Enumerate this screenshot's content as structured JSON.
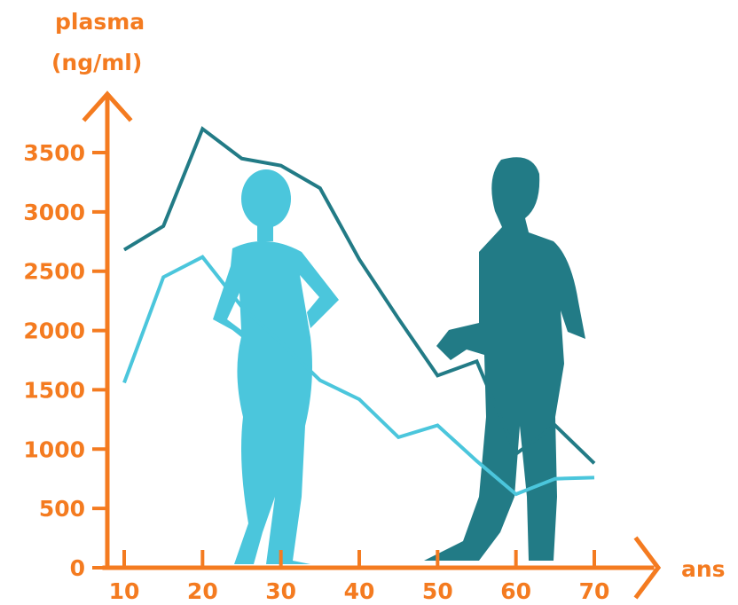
{
  "chart_data": {
    "type": "line",
    "ylabel_line1": "plasma",
    "ylabel_line2": "(ng/ml)",
    "xlabel": "ans",
    "xlim": [
      10,
      70
    ],
    "ylim": [
      0,
      3500
    ],
    "x_ticks": [
      10,
      20,
      30,
      40,
      50,
      60,
      70
    ],
    "y_ticks": [
      0,
      500,
      1000,
      1500,
      2000,
      2500,
      3000,
      3500
    ],
    "grid": false,
    "series": [
      {
        "color": "#227b86",
        "points": [
          [
            10,
            2680
          ],
          [
            15,
            2880
          ],
          [
            20,
            3700
          ],
          [
            25,
            3450
          ],
          [
            30,
            3390
          ],
          [
            35,
            3200
          ],
          [
            40,
            2600
          ],
          [
            45,
            2100
          ],
          [
            50,
            1620
          ],
          [
            55,
            1740
          ],
          [
            60,
            960
          ],
          [
            65,
            1200
          ],
          [
            70,
            880
          ]
        ]
      },
      {
        "color": "#4bc6dc",
        "points": [
          [
            10,
            1560
          ],
          [
            15,
            2450
          ],
          [
            20,
            2620
          ],
          [
            25,
            2200
          ],
          [
            30,
            1900
          ],
          [
            35,
            1580
          ],
          [
            40,
            1420
          ],
          [
            45,
            1100
          ],
          [
            50,
            1200
          ],
          [
            55,
            900
          ],
          [
            60,
            620
          ],
          [
            65,
            750
          ],
          [
            70,
            760
          ]
        ]
      }
    ],
    "colors": {
      "axis": "#f47b20",
      "woman": "#4bc6dc",
      "man": "#227b86"
    }
  },
  "illustrations": {
    "woman": "woman-silhouette",
    "man": "man-silhouette"
  }
}
